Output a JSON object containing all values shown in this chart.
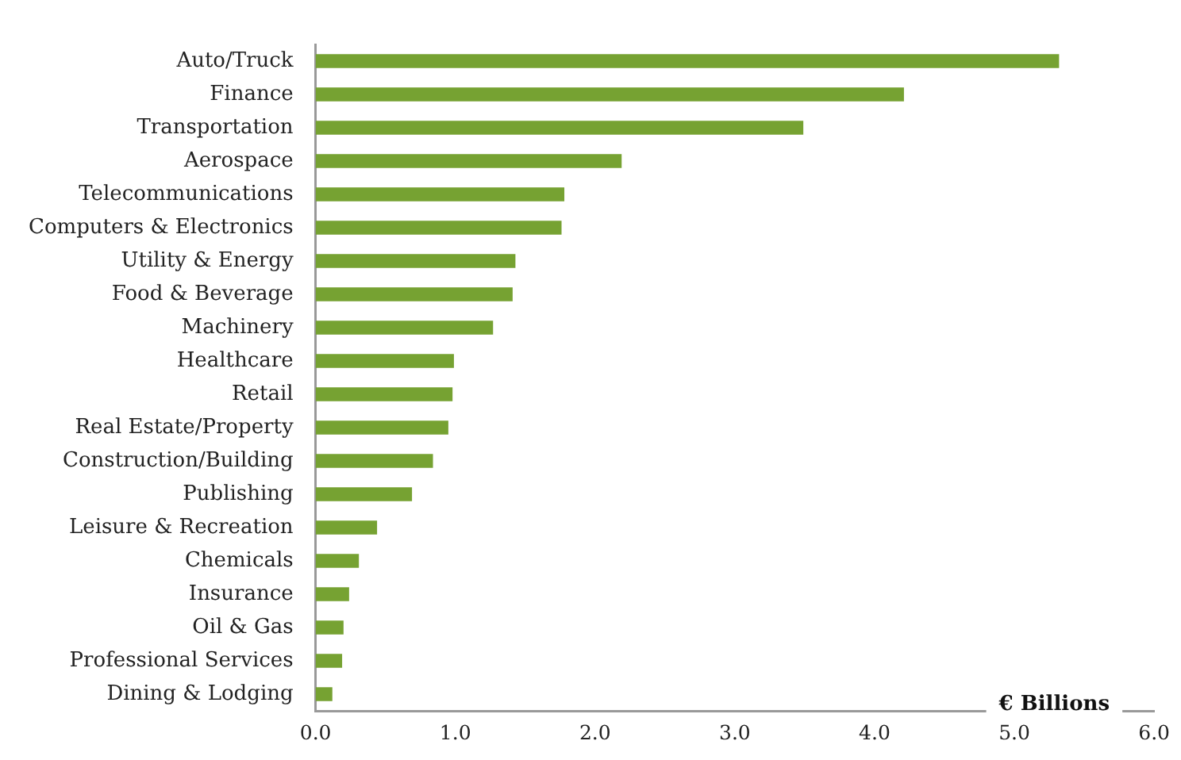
{
  "chart_data": {
    "type": "bar",
    "orientation": "horizontal",
    "xlabel": "€ Billions",
    "categories": [
      "Auto/Truck",
      "Finance",
      "Transportation",
      "Aerospace",
      "Telecommunications",
      "Computers & Electronics",
      "Utility & Energy",
      "Food & Beverage",
      "Machinery",
      "Healthcare",
      "Retail",
      "Real Estate/Property",
      "Construction/Building",
      "Publishing",
      "Leisure & Recreation",
      "Chemicals",
      "Insurance",
      "Oil & Gas",
      "Professional Services",
      "Dining & Lodging"
    ],
    "values": [
      5.32,
      4.21,
      3.49,
      2.19,
      1.78,
      1.76,
      1.43,
      1.41,
      1.27,
      0.99,
      0.98,
      0.95,
      0.84,
      0.69,
      0.44,
      0.31,
      0.24,
      0.2,
      0.19,
      0.12
    ],
    "color": "#76a232",
    "xlim": [
      0,
      6
    ],
    "xticks": [
      {
        "value": 0,
        "label": "0.0"
      },
      {
        "value": 1,
        "label": "1.0"
      },
      {
        "value": 2,
        "label": "2.0"
      },
      {
        "value": 3,
        "label": "3.0"
      },
      {
        "value": 4,
        "label": "4.0"
      },
      {
        "value": 5,
        "label": "5.0"
      },
      {
        "value": 6,
        "label": "6.0"
      }
    ],
    "grid": false,
    "legend": false
  }
}
